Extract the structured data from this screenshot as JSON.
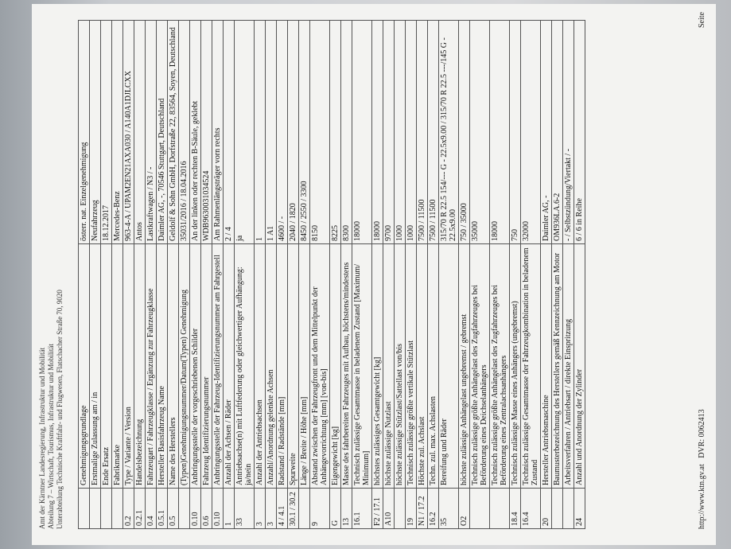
{
  "header": {
    "lines": [
      "Amt der Kärntner Landesregierung, Infrastruktur und Mobilität",
      "Abteilung 7 – Wirtschaft, Tourismus, Infrastruktur und Mobilität",
      "Unterabteilung Technische Kraftfahr- und Flugwesen, Flatschacher Straße 70, 9020"
    ]
  },
  "table": {
    "rows": [
      [
        "",
        "Genehmigungsgrundlage",
        "österr. nat. Einzelgenehmigung"
      ],
      [
        "",
        "Erstmalige Zulassung am / in",
        "Neufahrzeug"
      ],
      [
        "",
        "Ende Ersatz",
        "18.12.2017"
      ],
      [
        "",
        "Fabrikmarke",
        "Mercedes-Benz"
      ],
      [
        "0.2",
        "Type / Variante / Version",
        "963-4-A / UPAM2EN21AXA030 / A140A1DJLCXX"
      ],
      [
        "0.2.1",
        "Handelsbezeichnung",
        "Antos"
      ],
      [
        "0.4",
        "Fahrzeugart / Fahrzeugklasse / Ergänzung zur Fahrzeugklasse",
        "Lastkraftwagen / N3 / -"
      ],
      [
        "0.5.1",
        "Hersteller Basisfahrzeug Name",
        "Daimler AG, -, 70546 Stuttgart, Deutschland"
      ],
      [
        "0.5",
        "Name des Herstellers",
        "Geldolf & Sohn GmbH, Dorfstraße 22, 83564, Soyen, Deutschland"
      ],
      [
        "",
        "(Typen)Genehmigungsnummer/Datum(Typen) Genehmigung",
        "35031/2016 / 18.04.2016"
      ],
      [
        "0.10",
        "Anbringungsstelle der vorgeschriebenen Schilder",
        "An der linken oder rechten B-Säule, geklebt"
      ],
      [
        "0.6",
        "Fahrzeug Identifizierungsnummer",
        "WDB9630031034524"
      ],
      [
        "0.10",
        "Anbringungsstelle der Fahrzeug-Identifizierungsnummer am Fahrgestell",
        "Am Rahmenlängsträger vorn rechts"
      ],
      [
        "1",
        "Anzahl der Achsen / Räder",
        "2 / 4"
      ],
      [
        "33",
        "Antriebsachse(n) mit Luftfederung oder gleichwertiger Aufhängung: ja/nein",
        "ja"
      ],
      [
        "3",
        "Anzahl der Antriebsachsen",
        "1"
      ],
      [
        "3",
        "Anzahl/Anordnung gelenkte Achsen",
        "1 A1"
      ],
      [
        "4 / 4.1",
        "Radstand / Radstände [mm]",
        "4600 / -"
      ],
      [
        "30.1 / 30.2",
        "Spurweite",
        "2040 / 1820"
      ],
      [
        "",
        "Länge / Breite / Höhe [mm]",
        "8450 / 2550 / 3300"
      ],
      [
        "9",
        "Abstand zwischen der Fahrzeugfront und dem Mittelpunkt der Anhängevorrichtung [mm] [von-bis]",
        "8150"
      ],
      [
        "G",
        "Eigengewicht [kg]",
        "8225"
      ],
      [
        "13",
        "Masse des fahrbereiten Fahrzeuges mit Aufbau, höchstens/mindestens",
        "8300"
      ],
      [
        "16.1",
        "Technisch zulässige Gesamtmasse in beladenem Zustand [Maximum/ Minimum]",
        "18000"
      ],
      [
        "F2 / 17.1",
        "höchstes zulässiges Gesamtgewicht [kg]",
        "18000"
      ],
      [
        "A10",
        "höchste zulässige Nutzlast",
        "9700"
      ],
      [
        "",
        "höchste zulässige Stützlast/Sattellast von/bis",
        "1000"
      ],
      [
        "19",
        "Technisch zulässige größte vertikale Stützlast",
        "1000"
      ],
      [
        "N1 / 17.2",
        "Höchste zul. Achslast",
        "7500 / 11500"
      ],
      [
        "16.2",
        "Techn. zul. max. Achslasten",
        "7500 / 11500"
      ],
      [
        "35",
        "Bereifung und Räder",
        "315/70 R 22.5 154/--- G - 22.5x9.00 / 315/70 R 22.5 ---/145 G - 22.5x9.00"
      ],
      [
        "O2",
        "höchste zulässige Anhängelast ungebremst / gebremst",
        "750 / 35000"
      ],
      [
        "",
        "Technisch zulässige größte Anhängelast des Zugfahrzeuges bei Beförderung eines Deichselanhängers",
        "35000"
      ],
      [
        "",
        "Technisch zulässige größte Anhängelast des Zugfahrzeuges bei Beförderung eines Zentralachsanhängers",
        "18000"
      ],
      [
        "18.4",
        "Technisch zulässige Masse eines Anhängers (ungebremst)",
        "750"
      ],
      [
        "16.4",
        "Technisch zulässige Gesamtmasse der Fahrzeugkombination in beladenem Zustand",
        "32000"
      ],
      [
        "20",
        "Hersteller Antriebsmaschine",
        "Daimler AG, -"
      ],
      [
        "",
        "Baumusterbezeichnung des Herstellers gemäß Kennzeichnung am Motor",
        "OM936LA.6-2"
      ],
      [
        "",
        "Arbeitsverfahren / Antriebsart / direkte Einspritzung",
        "- / Selbstzündung/Viertakt / -"
      ],
      [
        "24",
        "Anzahl und Anordnung der Zylinder",
        "6 / 6 in Reihe"
      ]
    ]
  },
  "footer": {
    "url": "http://www.ktn.gv.at",
    "dvr": "DVR: 0062413",
    "page": "Seite"
  }
}
